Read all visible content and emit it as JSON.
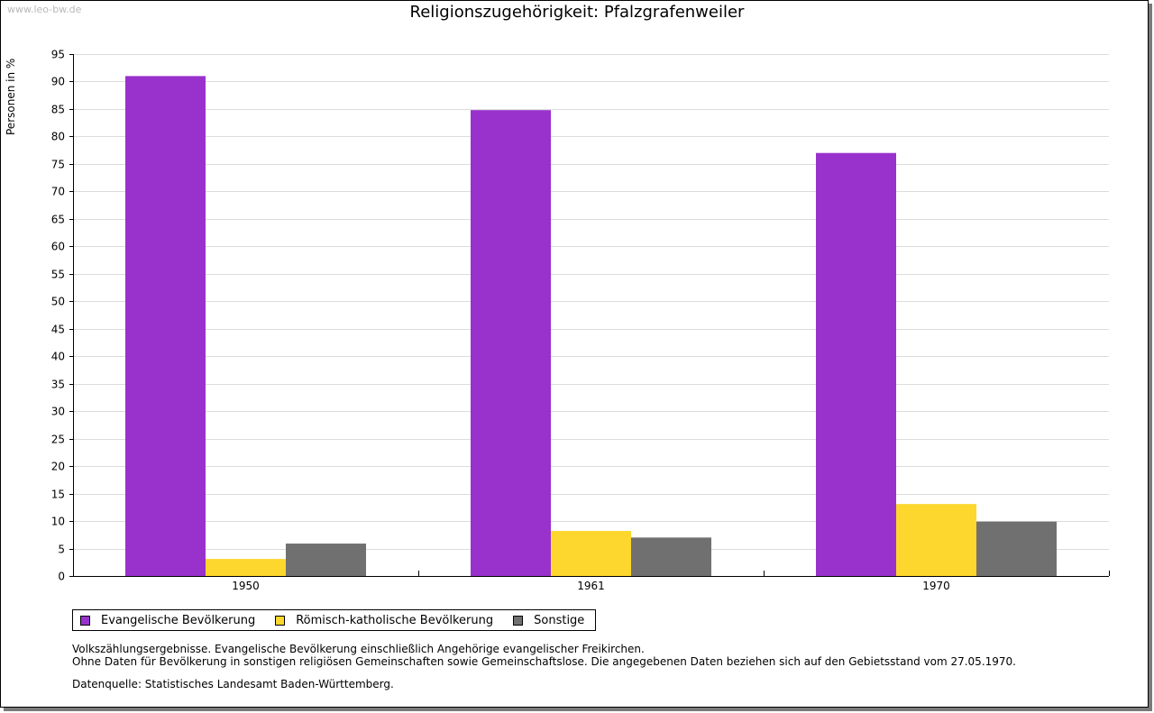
{
  "watermark": "www.leo-bw.de",
  "colors": {
    "evangelisch": "#9932cc",
    "katholisch": "#fdd72d",
    "sonstige": "#707070",
    "grid": "#dcdcdc"
  },
  "chart_data": {
    "type": "bar",
    "title": "Religionszugehörigkeit: Pfalzgrafenweiler",
    "xlabel": "",
    "ylabel": "Personen in %",
    "ylim": [
      0,
      95
    ],
    "ytick_step": 5,
    "grid": true,
    "legend_position": "bottom-left",
    "categories": [
      "1950",
      "1961",
      "1970"
    ],
    "series": [
      {
        "name": "Evangelische Bevölkerung",
        "color": "#9932cc",
        "values": [
          91.0,
          84.8,
          77.0
        ]
      },
      {
        "name": "Römisch-katholische Bevölkerung",
        "color": "#fdd72d",
        "values": [
          3.1,
          8.2,
          13.1
        ]
      },
      {
        "name": "Sonstige",
        "color": "#707070",
        "values": [
          5.9,
          7.0,
          9.9
        ]
      }
    ]
  },
  "notes": [
    "Volkszählungsergebnisse. Evangelische Bevölkerung einschließlich Angehörige evangelischer Freikirchen.",
    "Ohne Daten für Bevölkerung in sonstigen religiösen Gemeinschaften sowie Gemeinschaftslose. Die angegebenen Daten beziehen sich auf den Gebietsstand vom 27.05.1970."
  ],
  "source": "Datenquelle: Statistisches Landesamt Baden-Württemberg."
}
